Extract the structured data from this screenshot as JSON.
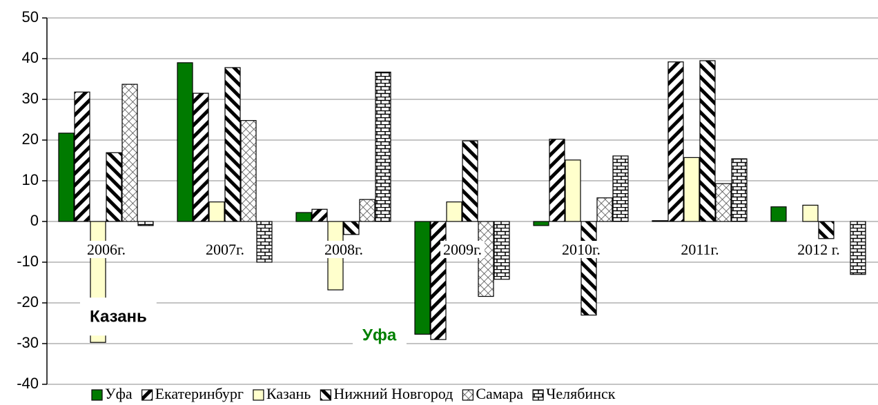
{
  "chart_data": {
    "type": "bar",
    "categories": [
      "2006г.",
      "2007г.",
      "2008г.",
      "2009г.",
      "2010г.",
      "2011г.",
      "2012 г."
    ],
    "series": [
      {
        "name": "Уфа",
        "color": "#007a00",
        "pattern": "solid",
        "values": [
          21.7,
          39,
          2.2,
          -27.7,
          -1,
          0.2,
          3.6
        ]
      },
      {
        "name": "Екатеринбург",
        "color": "#000000",
        "pattern": "back-diagonal",
        "values": [
          31.8,
          31.5,
          3,
          -29,
          20.2,
          39.2,
          null
        ]
      },
      {
        "name": "Казань",
        "color": "#ffffcc",
        "pattern": "solid",
        "values": [
          -29.7,
          4.8,
          -16.8,
          4.8,
          15.1,
          15.7,
          4
        ]
      },
      {
        "name": "Нижний Новгород",
        "color": "#000000",
        "pattern": "forward-diagonal",
        "values": [
          16.9,
          37.8,
          -3.2,
          19.8,
          -23,
          39.5,
          -4.2
        ]
      },
      {
        "name": "Самара",
        "color": "#000000",
        "pattern": "crosshatch",
        "values": [
          33.7,
          24.8,
          5.4,
          -18.4,
          5.8,
          9.3,
          null
        ]
      },
      {
        "name": "Челябинск",
        "color": "#000000",
        "pattern": "brick",
        "values": [
          -1,
          -10,
          36.7,
          -14.2,
          16.1,
          15.4,
          -13
        ]
      }
    ],
    "annotations": [
      {
        "text": "Казань",
        "color": "#000000"
      },
      {
        "text": "Уфа",
        "color": "#008000"
      }
    ],
    "ylim": [
      -40,
      50
    ],
    "yticks": [
      -40,
      -30,
      -20,
      -10,
      0,
      10,
      20,
      30,
      40,
      50
    ],
    "grid": true,
    "legend": "bottom"
  }
}
